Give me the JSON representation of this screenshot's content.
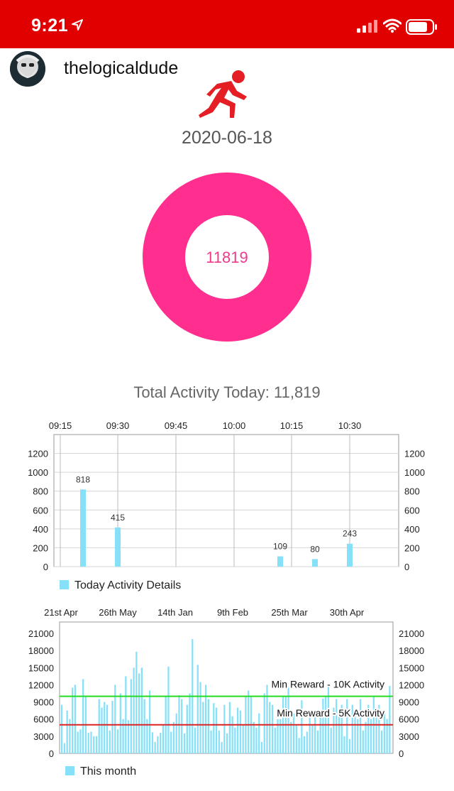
{
  "status_bar": {
    "time": "9:21",
    "bg_color": "#e10000"
  },
  "header": {
    "username": "thelogicaldude",
    "avatar_icon": "bearded-man-avatar-icon",
    "activity_icon": "running-person-icon"
  },
  "date": "2020-06-18",
  "donut": {
    "value": "11819",
    "color": "#ff2e8f"
  },
  "total_activity_label": "Total Activity Today: 11,819",
  "today_chart": {
    "type": "bar",
    "x_ticks": [
      "09:15",
      "09:30",
      "09:45",
      "10:00",
      "10:15",
      "10:30"
    ],
    "y_ticks": [
      "1200",
      "1000",
      "800",
      "600",
      "400",
      "200",
      "0"
    ],
    "ylim": [
      0,
      1400
    ],
    "legend": "Today Activity Details",
    "bar_color": "#86e1f8",
    "chart_data": {
      "type": "bar",
      "x": [
        "09:21",
        "09:30",
        "10:27",
        "10:27",
        "10:30"
      ],
      "values": [
        818,
        415,
        109,
        80,
        243
      ],
      "data_labels": [
        "818",
        "415",
        "109",
        "80",
        "243"
      ]
    }
  },
  "month_chart": {
    "type": "bar",
    "x_ticks": [
      "21st Apr",
      "26th May",
      "14th Jan",
      "9th Feb",
      "25th Mar",
      "30th Apr"
    ],
    "y_ticks": [
      "21000",
      "18000",
      "15000",
      "12000",
      "9000",
      "6000",
      "3000",
      "0"
    ],
    "ylim": [
      0,
      23000
    ],
    "legend": "This month",
    "bar_color": "#86e1f8",
    "limit_lines": [
      {
        "label": "Min Reward - 10K Activity",
        "value": 10000,
        "color": "#22dd22"
      },
      {
        "label": "Min Reward - 5K Activity",
        "value": 5000,
        "color": "#dd2222"
      }
    ],
    "chart_data": {
      "type": "bar",
      "values": [
        8500,
        1800,
        7500,
        6000,
        11500,
        12000,
        3800,
        4200,
        13000,
        10000,
        3600,
        3800,
        3000,
        3000,
        9500,
        8000,
        9000,
        8500,
        4000,
        9200,
        12000,
        4200,
        10500,
        6000,
        13500,
        5800,
        13000,
        15000,
        17800,
        14000,
        15000,
        9500,
        6000,
        11000,
        3700,
        2000,
        3000,
        3600,
        5000,
        10000,
        15200,
        3800,
        5500,
        7000,
        10200,
        9500,
        3500,
        8500,
        10500,
        20000,
        4500,
        15500,
        12500,
        9000,
        12000,
        9500,
        4000,
        8800,
        8000,
        4000,
        2000,
        8500,
        3500,
        9000,
        6500,
        4500,
        8000,
        7500,
        5000,
        10000,
        11000,
        10000,
        5500,
        4500,
        7000,
        2000,
        10500,
        12000,
        9000,
        8500,
        4500,
        6000,
        6000,
        10000,
        10000,
        11500,
        5500,
        7000,
        5000,
        2700,
        9300,
        3000,
        3800,
        6500,
        5000,
        6500,
        4000,
        7500,
        9600,
        10000,
        12000,
        4500,
        8000,
        9500,
        6500,
        8500,
        3000,
        9500,
        2500,
        8500,
        7000,
        6000,
        9500,
        4000,
        5500,
        8500,
        6000,
        10000,
        7000,
        8500,
        4000,
        7000,
        6000,
        11800
      ]
    }
  }
}
